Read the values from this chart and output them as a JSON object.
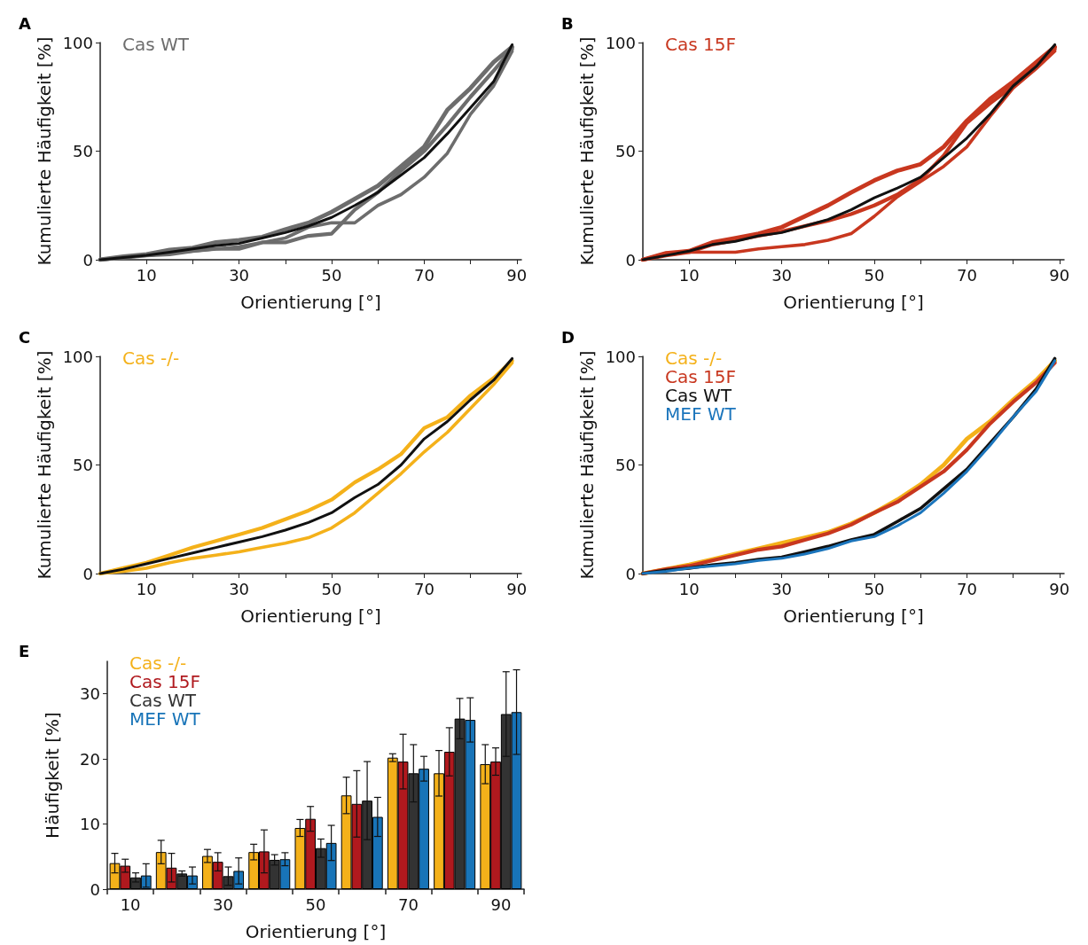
{
  "chart_data": [
    {
      "type": "line",
      "title": "A",
      "xlabel": "Orientierung [°]",
      "ylabel": "Kumulierte Häufigkeit [%]",
      "xlim": [
        0,
        91
      ],
      "xticks": [
        10,
        {
          "value": 20,
          "label": null
        },
        30,
        {
          "value": 40,
          "label": null
        },
        50,
        {
          "value": 60,
          "label": null
        },
        70,
        {
          "value": 80,
          "label": null
        },
        90
      ],
      "ylim": [
        0,
        100
      ],
      "yticks": [
        0,
        50,
        100
      ],
      "legend": "top left",
      "marker": "none",
      "line_style": "solid",
      "grid": false,
      "x": [
        0,
        5,
        10,
        15,
        20,
        25,
        30,
        35,
        40,
        45,
        50,
        55,
        60,
        65,
        70,
        75,
        80,
        85,
        89
      ],
      "series": [
        {
          "name": "Cas WT",
          "color": "#6d6d6d",
          "values": [
            0,
            1.5,
            2.5,
            4.5,
            5.5,
            8,
            9,
            10.5,
            14,
            17,
            22,
            28,
            34,
            43,
            52,
            69,
            79,
            91,
            98
          ]
        },
        {
          "color": "#6d6d6d",
          "values": [
            0,
            1,
            2,
            2.5,
            4,
            5,
            5,
            8,
            8,
            11,
            12,
            23,
            31,
            41,
            50,
            62,
            75,
            87,
            97
          ]
        },
        {
          "color": "#6d6d6d",
          "values": [
            0,
            1,
            2,
            3,
            4,
            5,
            6,
            8,
            10,
            15,
            17,
            17,
            25,
            30,
            38,
            49,
            67,
            80,
            96
          ]
        },
        {
          "color": "#111111",
          "values": [
            0,
            1,
            2,
            3.5,
            5,
            6.5,
            7.5,
            10,
            12.5,
            15.5,
            19.5,
            25,
            31,
            39,
            47,
            58,
            70,
            82,
            99
          ]
        }
      ]
    },
    {
      "type": "line",
      "title": "B",
      "xlabel": "Orientierung [°]",
      "ylabel": "Kumulierte Häufigkeit [%]",
      "xlim": [
        0,
        91
      ],
      "xticks": [
        10,
        {
          "value": 20,
          "label": null
        },
        30,
        {
          "value": 40,
          "label": null
        },
        50,
        {
          "value": 60,
          "label": null
        },
        70,
        {
          "value": 80,
          "label": null
        },
        90
      ],
      "ylim": [
        0,
        100
      ],
      "yticks": [
        0,
        50,
        100
      ],
      "legend": "top left",
      "marker": "none",
      "line_style": "solid",
      "grid": false,
      "x": [
        0,
        5,
        10,
        15,
        20,
        25,
        30,
        35,
        40,
        45,
        50,
        55,
        60,
        65,
        70,
        75,
        80,
        85,
        89
      ],
      "series": [
        {
          "name": "Cas 15F",
          "color": "#c8371f",
          "values": [
            0,
            3,
            4,
            8,
            10,
            12,
            15,
            20,
            25,
            31,
            36.5,
            41,
            44,
            52,
            64,
            74,
            82,
            91,
            98
          ]
        },
        {
          "color": "#c8371f",
          "values": [
            0,
            2,
            3.5,
            7,
            9,
            11,
            13,
            15.5,
            18,
            21,
            25,
            30,
            37,
            48,
            63,
            72,
            80,
            90,
            97
          ]
        },
        {
          "color": "#c8371f",
          "values": [
            0,
            3,
            3.5,
            3.5,
            3.5,
            5,
            6,
            7,
            9,
            12,
            20,
            29,
            36,
            43,
            52,
            66,
            79,
            88,
            96
          ]
        },
        {
          "color": "#111111",
          "values": [
            0,
            2,
            4,
            7,
            8.5,
            11,
            12.5,
            15.5,
            18.5,
            23,
            28.5,
            33,
            38,
            47,
            56,
            67,
            80,
            89,
            99
          ]
        }
      ]
    },
    {
      "type": "line",
      "title": "C",
      "xlabel": "Orientierung [°]",
      "ylabel": "Kumulierte Häufigkeit [%]",
      "xlim": [
        0,
        91
      ],
      "xticks": [
        10,
        {
          "value": 20,
          "label": null
        },
        30,
        {
          "value": 40,
          "label": null
        },
        50,
        {
          "value": 60,
          "label": null
        },
        70,
        {
          "value": 80,
          "label": null
        },
        90
      ],
      "ylim": [
        0,
        100
      ],
      "yticks": [
        0,
        50,
        100
      ],
      "legend": "top left",
      "marker": "none",
      "line_style": "solid",
      "grid": false,
      "x": [
        0,
        5,
        10,
        15,
        20,
        25,
        30,
        35,
        40,
        45,
        50,
        55,
        60,
        65,
        70,
        75,
        80,
        85,
        89
      ],
      "series": [
        {
          "name": "Cas -/-",
          "color": "#f4b11a",
          "values": [
            0,
            2.5,
            5,
            8.5,
            12,
            15,
            18,
            21,
            25,
            29,
            34,
            42,
            48,
            55,
            67,
            72,
            82,
            90,
            98
          ]
        },
        {
          "color": "#f4b11a",
          "values": [
            0,
            1,
            2.5,
            5,
            7,
            8.5,
            10,
            12,
            14,
            16.5,
            21,
            28,
            37,
            46,
            56,
            65,
            76,
            87,
            97
          ]
        },
        {
          "color": "#111111",
          "values": [
            0,
            2,
            4.5,
            7,
            9.5,
            12,
            14.5,
            17,
            20,
            23.5,
            28,
            35,
            41,
            50,
            62,
            70,
            80,
            89,
            99
          ]
        }
      ]
    },
    {
      "type": "line",
      "title": "D",
      "xlabel": "Orientierung [°]",
      "ylabel": "Kumulierte Häufigkeit [%]",
      "xlim": [
        0,
        91
      ],
      "xticks": [
        10,
        {
          "value": 20,
          "label": null
        },
        30,
        {
          "value": 40,
          "label": null
        },
        50,
        {
          "value": 60,
          "label": null
        },
        70,
        {
          "value": 80,
          "label": null
        },
        90
      ],
      "ylim": [
        0,
        100
      ],
      "yticks": [
        0,
        50,
        100
      ],
      "legend": "top left",
      "marker": "none",
      "line_style": "solid",
      "grid": false,
      "x": [
        0,
        5,
        10,
        15,
        20,
        25,
        30,
        35,
        40,
        45,
        50,
        55,
        60,
        65,
        70,
        75,
        80,
        85,
        89
      ],
      "series": [
        {
          "name": "Cas -/-",
          "color": "#f4b11a",
          "values": [
            0,
            2,
            4,
            6.5,
            9,
            11.5,
            14,
            16.5,
            19,
            23,
            28,
            34,
            41,
            50,
            62,
            70,
            80,
            89,
            98
          ]
        },
        {
          "name": "Cas 15F",
          "color": "#c8371f",
          "values": [
            0,
            2,
            3.5,
            6,
            8.5,
            11,
            12.5,
            15.5,
            18.5,
            22.5,
            28,
            33,
            40,
            47,
            57,
            69,
            79,
            88,
            97
          ]
        },
        {
          "name": "Cas WT",
          "color": "#111111",
          "values": [
            0,
            1.5,
            2.5,
            4,
            5,
            6.5,
            7.5,
            10,
            12.5,
            15.5,
            18,
            24,
            30,
            39,
            48,
            60,
            72,
            85,
            99
          ]
        },
        {
          "name": "MEF WT",
          "color": "#1b75bc",
          "values": [
            0,
            1,
            2.5,
            3.5,
            4.5,
            6,
            7,
            9,
            11.5,
            15,
            17,
            22,
            28,
            37,
            47,
            59,
            72,
            84,
            98
          ]
        }
      ]
    },
    {
      "type": "bar",
      "title": "E",
      "xlabel": "Orientierung [°]",
      "ylabel": "Häufigkeit [%]",
      "categories": [
        "10",
        null,
        "30",
        null,
        "50",
        null,
        "70",
        null,
        "90"
      ],
      "ylim": [
        0,
        35
      ],
      "yticks": [
        0,
        10,
        20,
        30
      ],
      "legend": "top left",
      "grid": false,
      "series": [
        {
          "name": "Cas -/-",
          "color": "#f4b11a",
          "values": [
            4,
            5.7,
            5.1,
            5.7,
            9.4,
            14.4,
            20.2,
            17.8,
            19.2
          ],
          "errors": [
            1.5,
            1.8,
            1,
            1.2,
            1.3,
            2.8,
            0.6,
            3.5,
            3
          ]
        },
        {
          "name": "Cas 15F",
          "color": "#b0191e",
          "values": [
            3.6,
            3.3,
            4.2,
            5.8,
            10.8,
            13.1,
            19.6,
            21.1,
            19.6
          ],
          "errors": [
            1,
            2.2,
            1.4,
            3.3,
            1.9,
            5.1,
            4.2,
            3.7,
            2.1
          ]
        },
        {
          "name": "Cas WT",
          "color": "#333333",
          "values": [
            1.8,
            2.4,
            2,
            4.5,
            6.3,
            13.6,
            17.8,
            26.2,
            26.9
          ],
          "errors": [
            0.7,
            0.4,
            1.4,
            0.8,
            1.4,
            6,
            4.4,
            3.1,
            6.5
          ]
        },
        {
          "name": "MEF WT",
          "color": "#1874b8",
          "values": [
            2.1,
            2.1,
            2.8,
            4.6,
            7.1,
            11.1,
            18.5,
            26,
            27.2
          ],
          "errors": [
            1.8,
            1.3,
            2,
            1,
            2.7,
            3,
            1.9,
            3.4,
            6.5
          ]
        }
      ]
    }
  ]
}
